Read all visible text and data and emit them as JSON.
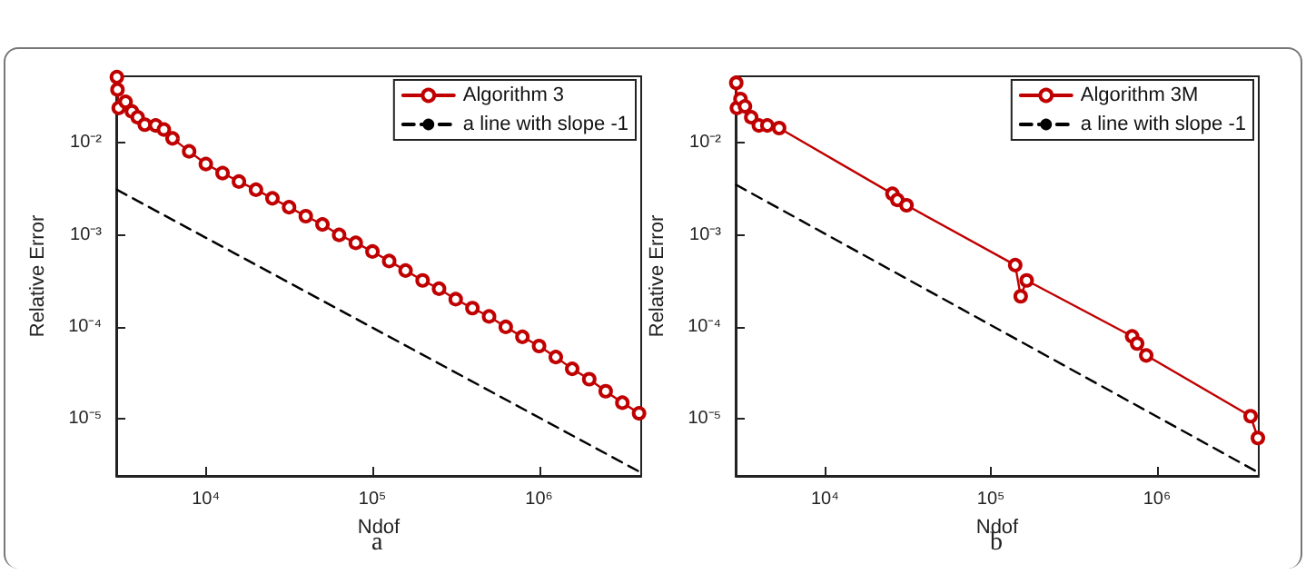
{
  "chart_data": [
    {
      "type": "line",
      "xlabel": "Ndof",
      "ylabel": "Relative Error",
      "log": "xy",
      "grid": false,
      "legend": "top right",
      "annotations": [
        "a"
      ],
      "xlim": [
        2900,
        4100000
      ],
      "ylim": [
        2.4e-06,
        0.053
      ],
      "xticks": [
        {
          "value": 10000,
          "label": "10⁴"
        },
        {
          "value": 100000,
          "label": "10⁵"
        },
        {
          "value": 1000000,
          "label": "10⁶"
        }
      ],
      "yticks": [
        {
          "value": 1e-05,
          "label": "10⁻⁵"
        },
        {
          "value": 0.0001,
          "label": "10⁻⁴"
        },
        {
          "value": 0.001,
          "label": "10⁻³"
        },
        {
          "value": 0.01,
          "label": "10⁻²"
        }
      ],
      "series": [
        {
          "name": "Algorithm 3",
          "color": "#c00000",
          "marker": "circle",
          "line_style": "solid",
          "x": [
            2925,
            2950,
            3000,
            3300,
            3600,
            3900,
            4300,
            5000,
            5600,
            6310,
            7940,
            10000,
            12600,
            15800,
            20000,
            25100,
            31600,
            39800,
            50100,
            63100,
            79400,
            100000,
            126000,
            158000,
            200000,
            251000,
            316000,
            398000,
            501000,
            631000,
            794000,
            1000000,
            1260000,
            1580000,
            2000000,
            2510000,
            3160000,
            3980000
          ],
          "values": [
            0.052,
            0.038,
            0.024,
            0.028,
            0.022,
            0.019,
            0.0158,
            0.0155,
            0.014,
            0.0112,
            0.0081,
            0.0059,
            0.0047,
            0.0038,
            0.0031,
            0.0025,
            0.002,
            0.0016,
            0.0013,
            0.001,
            0.00082,
            0.00066,
            0.00052,
            0.00041,
            0.00032,
            0.00026,
            0.0002,
            0.00016,
            0.00013,
            0.0001,
            7.8e-05,
            6.2e-05,
            4.7e-05,
            3.5e-05,
            2.7e-05,
            2e-05,
            1.5e-05,
            1.15e-05
          ]
        },
        {
          "name": "a line with slope -1",
          "color": "#000000",
          "marker": "none",
          "line_style": "dashed",
          "x": [
            2925,
            4100000
          ],
          "values": [
            0.0031,
            2.6e-06
          ]
        }
      ]
    },
    {
      "type": "line",
      "xlabel": "Ndof",
      "ylabel": "Relative Error",
      "log": "xy",
      "grid": false,
      "legend": "top right",
      "annotations": [
        "b"
      ],
      "xlim": [
        2900,
        4100000
      ],
      "ylim": [
        2.4e-06,
        0.053
      ],
      "xticks": [
        {
          "value": 10000,
          "label": "10⁴"
        },
        {
          "value": 100000,
          "label": "10⁵"
        },
        {
          "value": 1000000,
          "label": "10⁶"
        }
      ],
      "yticks": [
        {
          "value": 1e-05,
          "label": "10⁻⁵"
        },
        {
          "value": 0.0001,
          "label": "10⁻⁴"
        },
        {
          "value": 0.001,
          "label": "10⁻³"
        },
        {
          "value": 0.01,
          "label": "10⁻²"
        }
      ],
      "series": [
        {
          "name": "Algorithm 3M",
          "color": "#c00000",
          "marker": "circle",
          "line_style": "solid",
          "x": [
            2925,
            2950,
            3100,
            3300,
            3600,
            4000,
            4500,
            5300,
            25500,
            27300,
            31000,
            140000,
            151000,
            164000,
            708000,
            759000,
            861000,
            3660000,
            4050000
          ],
          "values": [
            0.045,
            0.024,
            0.03,
            0.025,
            0.019,
            0.0155,
            0.0155,
            0.0145,
            0.0028,
            0.0024,
            0.0021,
            0.00047,
            0.000215,
            0.00032,
            7.9e-05,
            6.6e-05,
            4.9e-05,
            1.07e-05,
            6.2e-06
          ]
        },
        {
          "name": "a line with slope -1",
          "color": "#000000",
          "marker": "none",
          "line_style": "dashed",
          "x": [
            2925,
            4100000
          ],
          "values": [
            0.0035,
            2.6e-06
          ]
        }
      ]
    }
  ]
}
